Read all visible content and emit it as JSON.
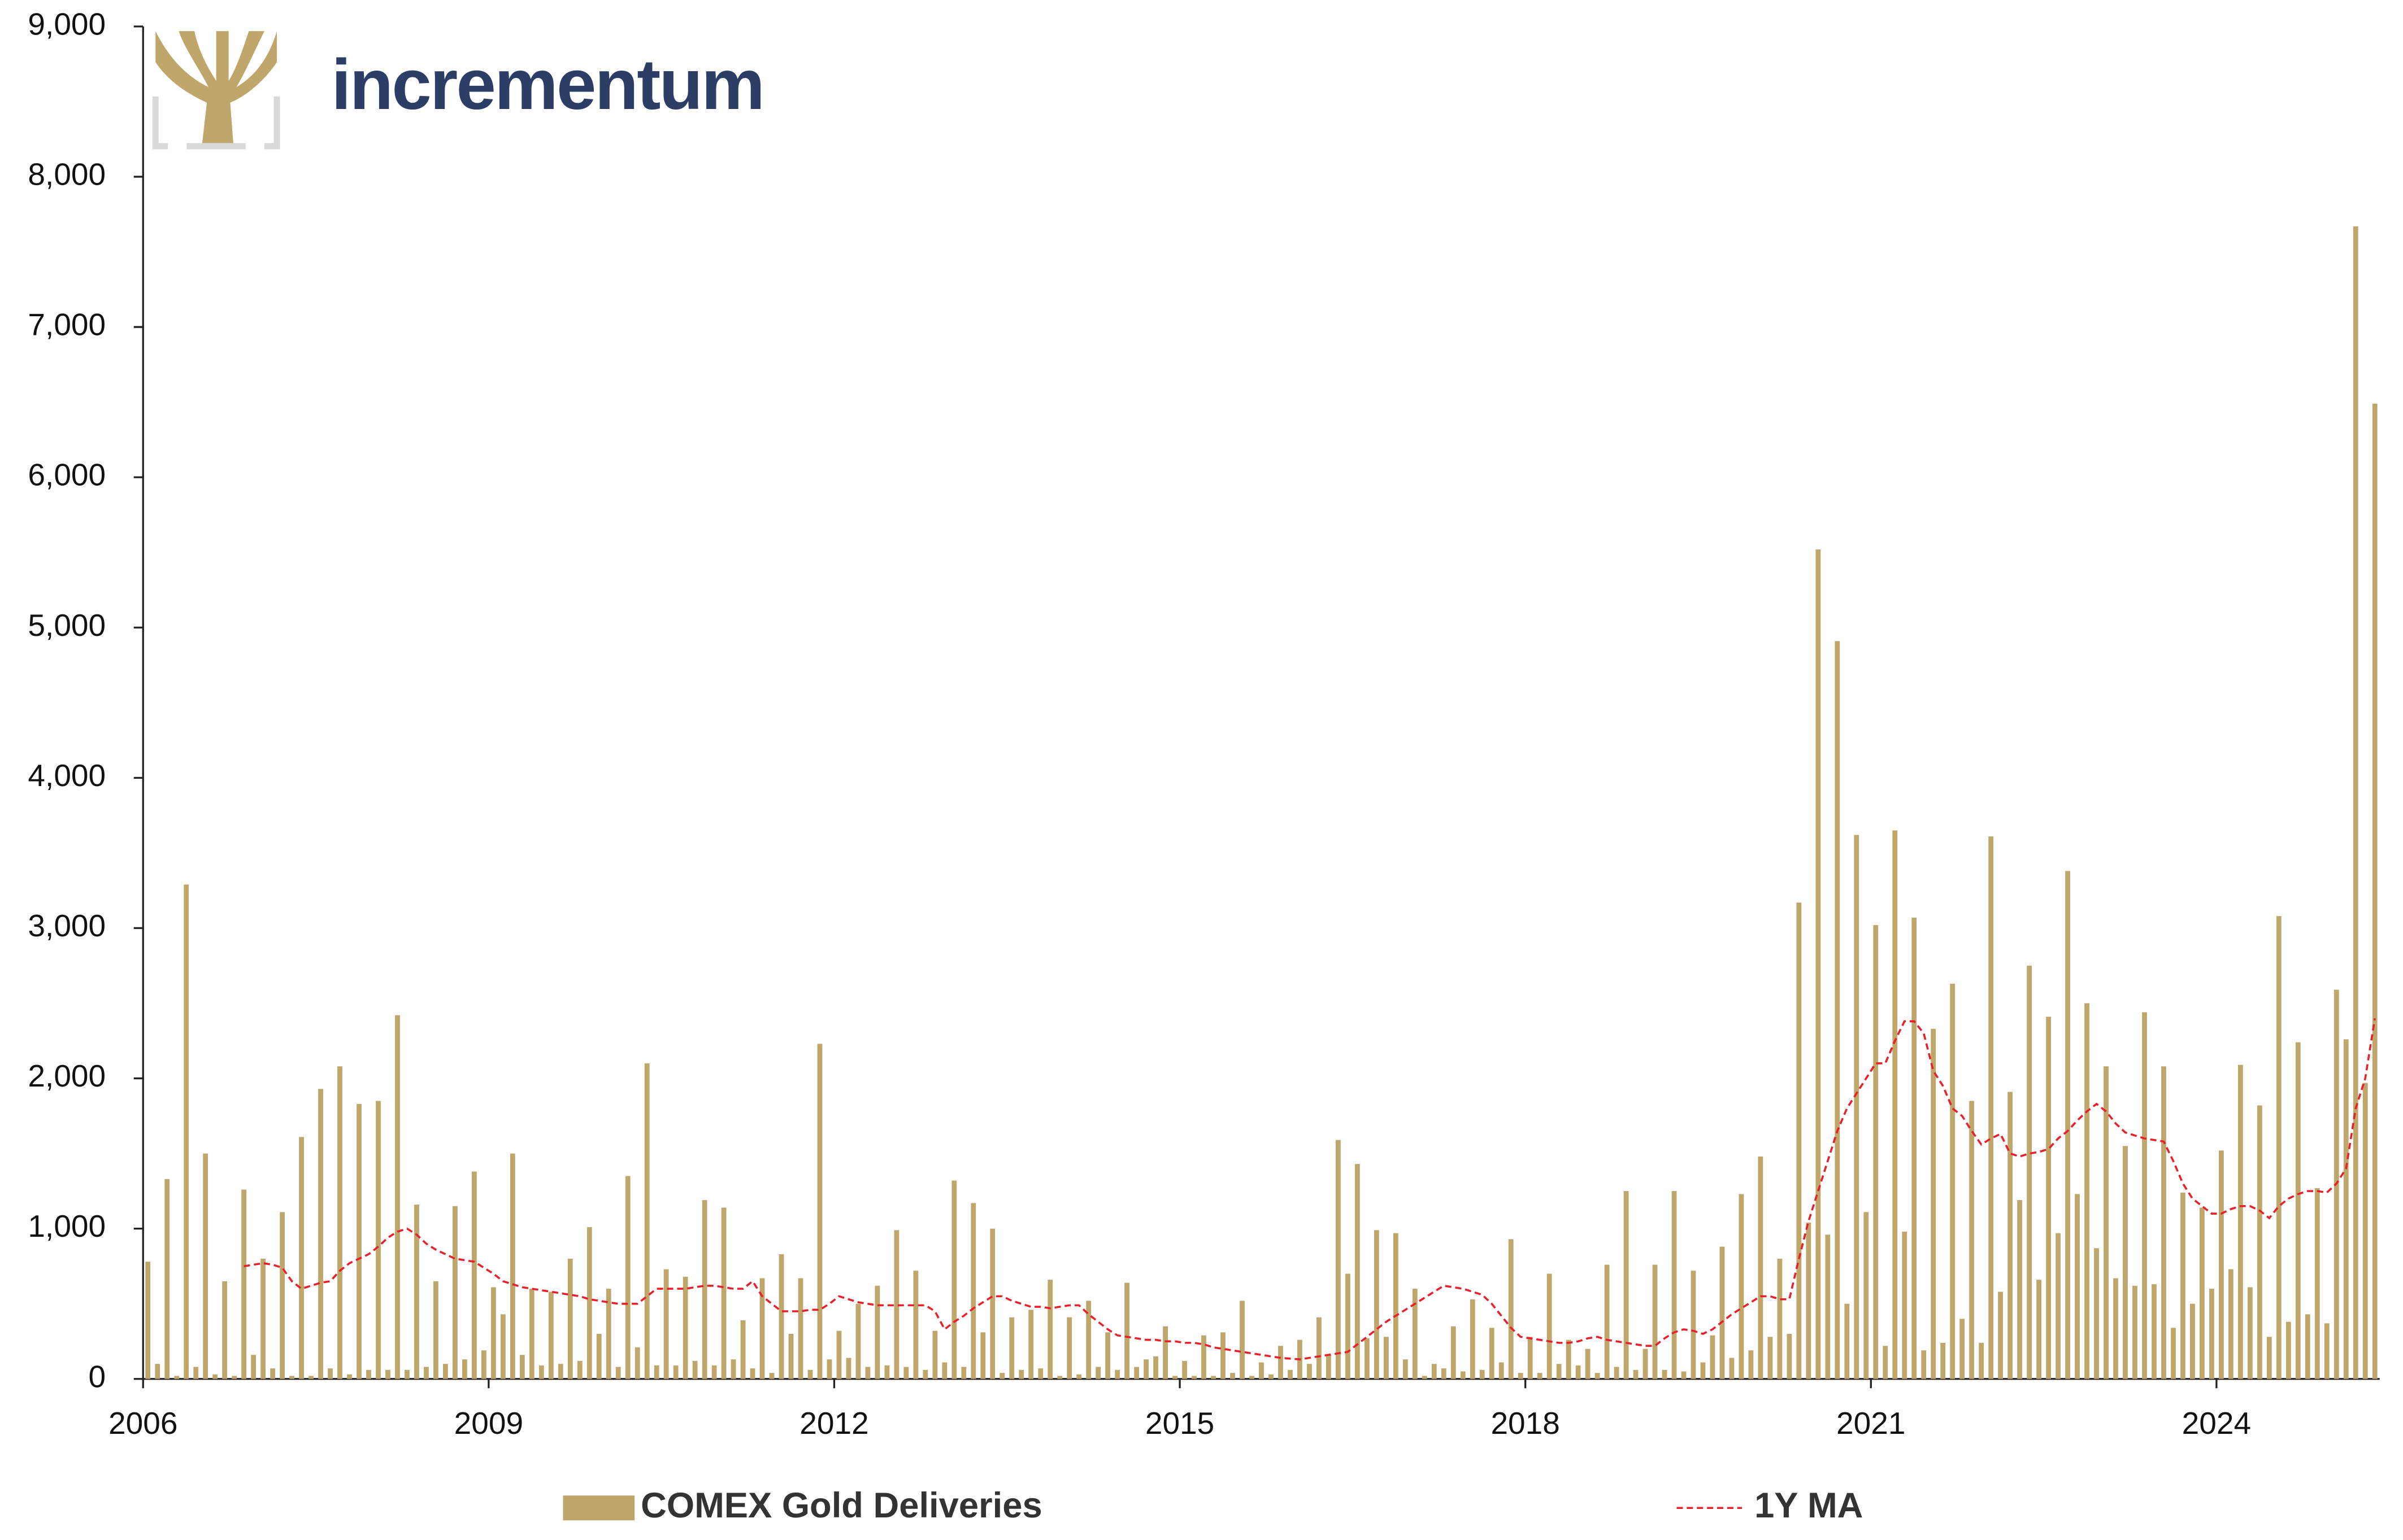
{
  "branding": {
    "logo_text": "incrementum"
  },
  "chart_data": {
    "type": "bar",
    "categories": [
      "2006",
      null,
      null,
      null,
      null,
      null,
      null,
      null,
      null,
      null,
      null,
      null,
      null,
      null,
      null,
      null,
      null,
      null,
      null,
      null,
      null,
      null,
      null,
      null,
      null,
      null,
      null,
      null,
      null,
      null,
      null,
      null,
      null,
      null,
      null,
      null,
      "2009",
      null,
      null,
      null,
      null,
      null,
      null,
      null,
      null,
      null,
      null,
      null,
      null,
      null,
      null,
      null,
      null,
      null,
      null,
      null,
      null,
      null,
      null,
      null,
      null,
      null,
      null,
      null,
      null,
      null,
      null,
      null,
      null,
      null,
      null,
      null,
      "2012",
      null,
      null,
      null,
      null,
      null,
      null,
      null,
      null,
      null,
      null,
      null,
      null,
      null,
      null,
      null,
      null,
      null,
      null,
      null,
      null,
      null,
      null,
      null,
      null,
      null,
      null,
      null,
      null,
      null,
      null,
      null,
      null,
      null,
      null,
      null,
      "2015",
      null,
      null,
      null,
      null,
      null,
      null,
      null,
      null,
      null,
      null,
      null,
      null,
      null,
      null,
      null,
      null,
      null,
      null,
      null,
      null,
      null,
      null,
      null,
      null,
      null,
      null,
      null,
      null,
      null,
      null,
      null,
      null,
      null,
      null,
      null,
      "2018",
      null,
      null,
      null,
      null,
      null,
      null,
      null,
      null,
      null,
      null,
      null,
      null,
      null,
      null,
      null,
      null,
      null,
      null,
      null,
      null,
      null,
      null,
      null,
      null,
      null,
      null,
      null,
      null,
      null,
      null,
      null,
      null,
      null,
      null,
      null,
      "2021",
      null,
      null,
      null,
      null,
      null,
      null,
      null,
      null,
      null,
      null,
      null,
      null,
      null,
      null,
      null,
      null,
      null,
      null,
      null,
      null,
      null,
      null,
      null,
      null,
      null,
      null,
      null,
      null,
      null,
      null,
      null,
      null,
      null,
      null,
      null,
      "2024",
      null,
      null,
      null,
      null,
      null,
      null,
      null,
      null,
      null,
      null,
      null,
      null,
      null,
      null,
      null,
      null
    ],
    "series": [
      {
        "name": "COMEX Gold Deliveries",
        "color": "#bfa66b",
        "values": [
          780,
          100,
          1330,
          20,
          3290,
          80,
          1500,
          30,
          650,
          20,
          1260,
          160,
          800,
          70,
          1110,
          20,
          1610,
          20,
          1930,
          70,
          2080,
          30,
          1830,
          60,
          1850,
          60,
          2420,
          60,
          1160,
          80,
          650,
          100,
          1150,
          130,
          1380,
          190,
          610,
          430,
          1500,
          160,
          600,
          90,
          580,
          100,
          800,
          120,
          1010,
          300,
          600,
          80,
          1350,
          210,
          2100,
          90,
          730,
          90,
          680,
          120,
          1190,
          90,
          1140,
          130,
          390,
          70,
          670,
          40,
          830,
          300,
          670,
          60,
          2230,
          130,
          320,
          140,
          500,
          80,
          620,
          90,
          990,
          80,
          720,
          60,
          320,
          110,
          1320,
          80,
          1170,
          310,
          1000,
          40,
          410,
          60,
          460,
          70,
          660,
          20,
          410,
          30,
          520,
          80,
          310,
          60,
          640,
          80,
          130,
          150,
          350,
          20,
          120,
          20,
          290,
          20,
          310,
          40,
          520,
          20,
          110,
          30,
          220,
          60,
          260,
          100,
          410,
          160,
          1590,
          700,
          1430,
          270,
          990,
          280,
          970,
          130,
          600,
          20,
          100,
          70,
          350,
          50,
          530,
          60,
          340,
          110,
          930,
          40,
          280,
          40,
          700,
          100,
          260,
          90,
          200,
          40,
          760,
          80,
          1250,
          60,
          200,
          760,
          60,
          1250,
          50,
          720,
          110,
          290,
          880,
          140,
          1230,
          190,
          1480,
          280,
          800,
          300,
          3170,
          1040,
          5520,
          960,
          4910,
          500,
          3620,
          1110,
          3020,
          220,
          3650,
          980,
          3070,
          190,
          2330,
          240,
          2630,
          400,
          1850,
          240,
          3610,
          580,
          1910,
          1190,
          2750,
          660,
          2410,
          970,
          3380,
          1230,
          2500,
          870,
          2080,
          670,
          1550,
          620,
          2440,
          630,
          2080,
          340,
          1240,
          500,
          1140,
          600,
          1520,
          730,
          2090,
          610,
          1820,
          280,
          3080,
          380,
          2240,
          430,
          1270,
          370,
          2590,
          2260,
          7670,
          1970,
          6490
        ]
      },
      {
        "name": "1Y MA",
        "type": "line",
        "color": "#e8202a",
        "values": [
          null,
          null,
          null,
          null,
          null,
          null,
          null,
          null,
          null,
          null,
          750,
          760,
          770,
          760,
          740,
          650,
          600,
          620,
          640,
          650,
          720,
          770,
          800,
          830,
          880,
          940,
          980,
          1000,
          960,
          900,
          860,
          830,
          800,
          790,
          780,
          740,
          700,
          650,
          630,
          610,
          600,
          590,
          580,
          570,
          560,
          550,
          530,
          520,
          510,
          500,
          500,
          500,
          550,
          600,
          600,
          600,
          600,
          610,
          620,
          620,
          610,
          600,
          600,
          650,
          550,
          500,
          450,
          450,
          450,
          460,
          460,
          500,
          550,
          530,
          510,
          500,
          490,
          490,
          490,
          490,
          490,
          490,
          450,
          330,
          380,
          420,
          470,
          510,
          550,
          550,
          520,
          500,
          480,
          480,
          470,
          480,
          490,
          490,
          430,
          380,
          330,
          290,
          280,
          270,
          260,
          260,
          250,
          250,
          240,
          240,
          230,
          210,
          200,
          190,
          180,
          170,
          160,
          150,
          140,
          135,
          130,
          140,
          150,
          160,
          170,
          180,
          230,
          280,
          330,
          380,
          420,
          460,
          500,
          540,
          580,
          620,
          610,
          600,
          580,
          560,
          500,
          420,
          340,
          280,
          270,
          260,
          250,
          240,
          240,
          250,
          270,
          280,
          260,
          250,
          240,
          230,
          220,
          220,
          270,
          310,
          330,
          320,
          300,
          330,
          380,
          430,
          470,
          510,
          550,
          550,
          530,
          530,
          800,
          1050,
          1250,
          1450,
          1650,
          1800,
          1900,
          2000,
          2100,
          2100,
          2250,
          2380,
          2380,
          2300,
          2050,
          1950,
          1800,
          1750,
          1650,
          1560,
          1600,
          1630,
          1500,
          1480,
          1500,
          1510,
          1530,
          1600,
          1650,
          1720,
          1780,
          1830,
          1780,
          1700,
          1640,
          1620,
          1600,
          1590,
          1580,
          1450,
          1300,
          1200,
          1150,
          1100,
          1100,
          1130,
          1150,
          1150,
          1120,
          1070,
          1150,
          1200,
          1230,
          1250,
          1250,
          1240,
          1300,
          1400,
          1800,
          2000,
          2400
        ]
      }
    ],
    "ylim": [
      0,
      9000
    ],
    "yticks": [
      0,
      {
        "value": 1000,
        "label": "1,000"
      },
      {
        "value": 2000,
        "label": "2,000"
      },
      {
        "value": 3000,
        "label": "3,000"
      },
      {
        "value": 4000,
        "label": "4,000"
      },
      {
        "value": 5000,
        "label": "5,000"
      },
      {
        "value": 6000,
        "label": "6,000"
      },
      {
        "value": 7000,
        "label": "7,000"
      },
      {
        "value": 8000,
        "label": "8,000"
      },
      {
        "value": 9000,
        "label": "9,000"
      }
    ],
    "grid": false,
    "legend": "bottom"
  }
}
